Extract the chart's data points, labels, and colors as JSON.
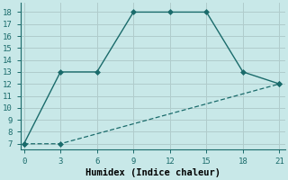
{
  "xlabel": "Humidex (Indice chaleur)",
  "background_color": "#c8e8e8",
  "grid_color": "#b0cccc",
  "line_color": "#1a6b6b",
  "line1_x": [
    0,
    3,
    6,
    9,
    12,
    15,
    18,
    21
  ],
  "line1_y": [
    7,
    13,
    13,
    18,
    18,
    18,
    13,
    12
  ],
  "line2_x": [
    0,
    3,
    21
  ],
  "line2_y": [
    7,
    7,
    12
  ],
  "xlim": [
    -0.3,
    21.5
  ],
  "ylim": [
    6.5,
    18.8
  ],
  "xticks": [
    0,
    3,
    6,
    9,
    12,
    15,
    18,
    21
  ],
  "yticks": [
    7,
    8,
    9,
    10,
    11,
    12,
    13,
    14,
    15,
    16,
    17,
    18
  ],
  "xlabel_fontsize": 7.5,
  "tick_fontsize": 6.5,
  "markersize": 3.0,
  "linewidth1": 1.0,
  "linewidth2": 0.9
}
